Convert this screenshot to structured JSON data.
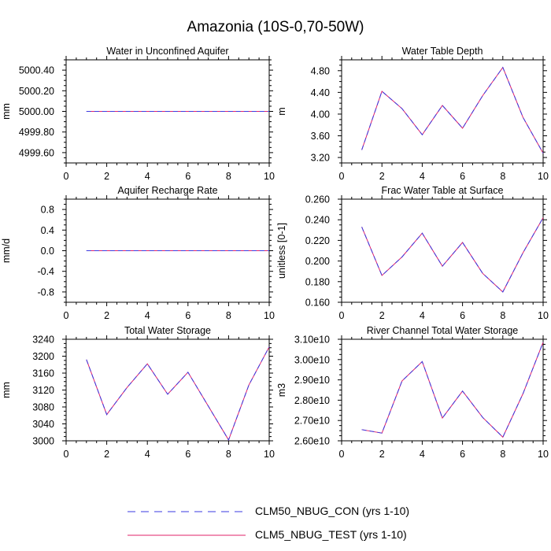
{
  "title": "Amazonia (10S-0,70-50W)",
  "colors": {
    "con": "#3a3ae0",
    "test": "#e0206a",
    "axis": "#000000"
  },
  "legend": {
    "items": [
      {
        "label": "CLM50_NBUG_CON (yrs 1-10)",
        "style": "dashed",
        "color": "#3a3ae0"
      },
      {
        "label": "CLM5_NBUG_TEST (yrs 1-10)",
        "style": "solid",
        "color": "#e0206a"
      }
    ]
  },
  "chart_data": [
    {
      "id": "water-unconfined-aquifer",
      "type": "line",
      "title": "Water in Unconfined Aquifer",
      "ylabel": "mm",
      "xlim": [
        0,
        10
      ],
      "xticks": [
        0,
        2,
        4,
        6,
        8,
        10
      ],
      "ylim": [
        4999.5,
        5000.5
      ],
      "yticks": [
        4999.6,
        4999.8,
        5000.0,
        5000.2,
        5000.4
      ],
      "ytick_labels": [
        "4999.60",
        "4999.80",
        "5000.00",
        "5000.20",
        "5000.40"
      ],
      "x": [
        1,
        2,
        3,
        4,
        5,
        6,
        7,
        8,
        9,
        10
      ],
      "series": [
        {
          "name": "CLM50_NBUG_CON (yrs 1-10)",
          "values": [
            5000,
            5000,
            5000,
            5000,
            5000,
            5000,
            5000,
            5000,
            5000,
            5000
          ]
        },
        {
          "name": "CLM5_NBUG_TEST (yrs 1-10)",
          "values": [
            5000,
            5000,
            5000,
            5000,
            5000,
            5000,
            5000,
            5000,
            5000,
            5000
          ]
        }
      ]
    },
    {
      "id": "water-table-depth",
      "type": "line",
      "title": "Water Table Depth",
      "ylabel": "m",
      "xlim": [
        0,
        10
      ],
      "xticks": [
        0,
        2,
        4,
        6,
        8,
        10
      ],
      "ylim": [
        3.1,
        5.0
      ],
      "yticks": [
        3.2,
        3.6,
        4.0,
        4.4,
        4.8
      ],
      "ytick_labels": [
        "3.20",
        "3.60",
        "4.00",
        "4.40",
        "4.80"
      ],
      "x": [
        1,
        2,
        3,
        4,
        5,
        6,
        7,
        8,
        9,
        10
      ],
      "series": [
        {
          "name": "CLM50_NBUG_CON (yrs 1-10)",
          "values": [
            3.34,
            4.42,
            4.1,
            3.62,
            4.16,
            3.74,
            4.34,
            4.86,
            3.94,
            3.28
          ]
        },
        {
          "name": "CLM5_NBUG_TEST (yrs 1-10)",
          "values": [
            3.34,
            4.42,
            4.1,
            3.62,
            4.16,
            3.74,
            4.34,
            4.86,
            3.94,
            3.28
          ]
        }
      ]
    },
    {
      "id": "aquifer-recharge-rate",
      "type": "line",
      "title": "Aquifer Recharge Rate",
      "ylabel": "mm/d",
      "xlim": [
        0,
        10
      ],
      "xticks": [
        0,
        2,
        4,
        6,
        8,
        10
      ],
      "ylim": [
        -1.0,
        1.0
      ],
      "yticks": [
        -0.8,
        -0.4,
        0.0,
        0.4,
        0.8
      ],
      "ytick_labels": [
        "-0.8",
        "-0.4",
        "0.0",
        "0.4",
        "0.8"
      ],
      "x": [
        1,
        2,
        3,
        4,
        5,
        6,
        7,
        8,
        9,
        10
      ],
      "series": [
        {
          "name": "CLM50_NBUG_CON (yrs 1-10)",
          "values": [
            0,
            0,
            0,
            0,
            0,
            0,
            0,
            0,
            0,
            0
          ]
        },
        {
          "name": "CLM5_NBUG_TEST (yrs 1-10)",
          "values": [
            0,
            0,
            0,
            0,
            0,
            0,
            0,
            0,
            0,
            0
          ]
        }
      ]
    },
    {
      "id": "frac-water-table-surface",
      "type": "line",
      "title": "Frac Water Table at Surface",
      "ylabel": "unitless [0-1]",
      "xlim": [
        0,
        10
      ],
      "xticks": [
        0,
        2,
        4,
        6,
        8,
        10
      ],
      "ylim": [
        0.16,
        0.26
      ],
      "yticks": [
        0.16,
        0.18,
        0.2,
        0.22,
        0.24,
        0.26
      ],
      "ytick_labels": [
        "0.160",
        "0.180",
        "0.200",
        "0.220",
        "0.240",
        "0.260"
      ],
      "x": [
        1,
        2,
        3,
        4,
        5,
        6,
        7,
        8,
        9,
        10
      ],
      "series": [
        {
          "name": "CLM50_NBUG_CON (yrs 1-10)",
          "values": [
            0.233,
            0.186,
            0.204,
            0.227,
            0.195,
            0.218,
            0.188,
            0.17,
            0.208,
            0.242
          ]
        },
        {
          "name": "CLM5_NBUG_TEST (yrs 1-10)",
          "values": [
            0.233,
            0.186,
            0.204,
            0.227,
            0.195,
            0.218,
            0.188,
            0.17,
            0.208,
            0.242
          ]
        }
      ]
    },
    {
      "id": "total-water-storage",
      "type": "line",
      "title": "Total Water Storage",
      "ylabel": "mm",
      "xlim": [
        0,
        10
      ],
      "xticks": [
        0,
        2,
        4,
        6,
        8,
        10
      ],
      "ylim": [
        3000,
        3240
      ],
      "yticks": [
        3000,
        3040,
        3080,
        3120,
        3160,
        3200,
        3240
      ],
      "ytick_labels": [
        "3000",
        "3040",
        "3080",
        "3120",
        "3160",
        "3200",
        "3240"
      ],
      "x": [
        1,
        2,
        3,
        4,
        5,
        6,
        7,
        8,
        9,
        10
      ],
      "series": [
        {
          "name": "CLM50_NBUG_CON (yrs 1-10)",
          "values": [
            3192,
            3062,
            3126,
            3182,
            3110,
            3162,
            3082,
            3002,
            3132,
            3222
          ]
        },
        {
          "name": "CLM5_NBUG_TEST (yrs 1-10)",
          "values": [
            3192,
            3062,
            3126,
            3182,
            3110,
            3162,
            3082,
            3002,
            3132,
            3222
          ]
        }
      ]
    },
    {
      "id": "river-channel-storage",
      "type": "line",
      "title": "River Channel Total Water Storage",
      "ylabel": "m3",
      "xlim": [
        0,
        10
      ],
      "xticks": [
        0,
        2,
        4,
        6,
        8,
        10
      ],
      "ylim": [
        26000000000.0,
        31000000000.0
      ],
      "yticks": [
        26000000000.0,
        27000000000.0,
        28000000000.0,
        29000000000.0,
        30000000000.0,
        31000000000.0
      ],
      "ytick_labels": [
        "2.60e10",
        "2.70e10",
        "2.80e10",
        "2.90e10",
        "3.00e10",
        "3.10e10"
      ],
      "x": [
        1,
        2,
        3,
        4,
        5,
        6,
        7,
        8,
        9,
        10
      ],
      "series": [
        {
          "name": "CLM50_NBUG_CON (yrs 1-10)",
          "values": [
            26550000000.0,
            26380000000.0,
            28950000000.0,
            29900000000.0,
            27120000000.0,
            28450000000.0,
            27150000000.0,
            26180000000.0,
            28320000000.0,
            30850000000.0
          ]
        },
        {
          "name": "CLM5_NBUG_TEST (yrs 1-10)",
          "values": [
            26550000000.0,
            26380000000.0,
            28950000000.0,
            29900000000.0,
            27120000000.0,
            28450000000.0,
            27150000000.0,
            26180000000.0,
            28320000000.0,
            30850000000.0
          ]
        }
      ]
    }
  ]
}
